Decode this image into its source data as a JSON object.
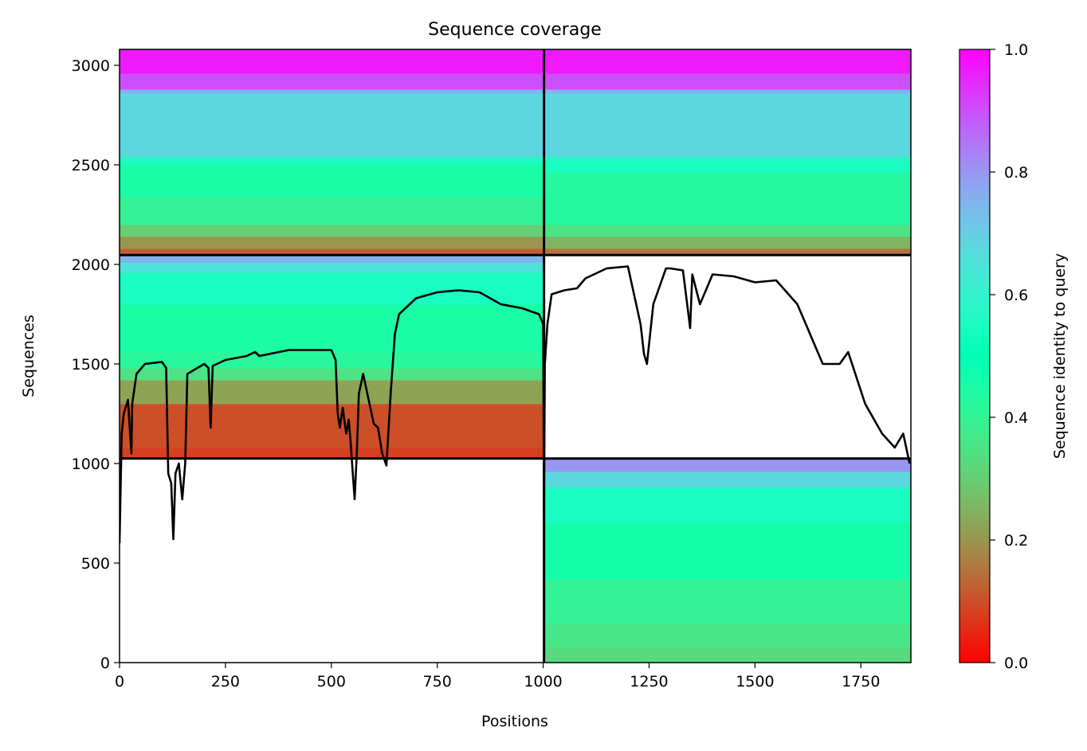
{
  "chart_data": {
    "type": "heatmap",
    "title": "Sequence coverage",
    "xlabel": "Positions",
    "ylabel": "Sequences",
    "xlim": [
      0,
      1868
    ],
    "ylim": [
      0,
      3080
    ],
    "xticks": [
      0,
      250,
      500,
      750,
      1000,
      1250,
      1500,
      1750
    ],
    "yticks": [
      0,
      500,
      1000,
      1500,
      2000,
      2500,
      3000
    ],
    "colorbar": {
      "label": "Sequence identity to query",
      "colormap": "rainbow_r",
      "range": [
        0,
        1
      ],
      "ticks": [
        0.0,
        0.2,
        0.4,
        0.6,
        0.8,
        1.0
      ],
      "tick_labels": [
        "0.0",
        "0.2",
        "0.4",
        "0.6",
        "0.8",
        "1.0"
      ]
    },
    "block_dividers": {
      "x": [
        1002,
        1002
      ],
      "y": [
        1025,
        2047
      ]
    },
    "blocks": [
      {
        "x_range": [
          0,
          1002
        ],
        "y_range": [
          2047,
          3080
        ],
        "identity_bands": [
          {
            "y": [
              2047,
              2080
            ],
            "identity": 0.12
          },
          {
            "y": [
              2080,
              2140
            ],
            "identity": 0.2
          },
          {
            "y": [
              2140,
              2200
            ],
            "identity": 0.3
          },
          {
            "y": [
              2200,
              2340
            ],
            "identity": 0.4
          },
          {
            "y": [
              2340,
              2500
            ],
            "identity": 0.45
          },
          {
            "y": [
              2500,
              2540
            ],
            "identity": 0.55
          },
          {
            "y": [
              2540,
              2860
            ],
            "identity": 0.68
          },
          {
            "y": [
              2860,
              2880
            ],
            "identity": 0.75
          },
          {
            "y": [
              2880,
              2960
            ],
            "identity": 0.9
          },
          {
            "y": [
              2960,
              3080
            ],
            "identity": 0.97
          }
        ]
      },
      {
        "x_range": [
          1002,
          1868
        ],
        "y_range": [
          2047,
          3080
        ],
        "identity_bands": [
          {
            "y": [
              2047,
              2080
            ],
            "identity": 0.15
          },
          {
            "y": [
              2080,
              2140
            ],
            "identity": 0.25
          },
          {
            "y": [
              2140,
              2200
            ],
            "identity": 0.35
          },
          {
            "y": [
              2200,
              2460
            ],
            "identity": 0.43
          },
          {
            "y": [
              2460,
              2540
            ],
            "identity": 0.55
          },
          {
            "y": [
              2540,
              2860
            ],
            "identity": 0.68
          },
          {
            "y": [
              2860,
              2880
            ],
            "identity": 0.75
          },
          {
            "y": [
              2880,
              2960
            ],
            "identity": 0.9
          },
          {
            "y": [
              2960,
              3080
            ],
            "identity": 0.97
          }
        ]
      },
      {
        "x_range": [
          0,
          1002
        ],
        "y_range": [
          1025,
          2047
        ],
        "identity_bands": [
          {
            "y": [
              1025,
              1080
            ],
            "identity": 0.08
          },
          {
            "y": [
              1080,
              1300
            ],
            "identity": 0.1
          },
          {
            "y": [
              1300,
              1420
            ],
            "identity": 0.22
          },
          {
            "y": [
              1420,
              1480
            ],
            "identity": 0.35
          },
          {
            "y": [
              1480,
              1560
            ],
            "identity": 0.42
          },
          {
            "y": [
              1560,
              1800
            ],
            "identity": 0.45
          },
          {
            "y": [
              1800,
              1960
            ],
            "identity": 0.55
          },
          {
            "y": [
              1960,
              2010
            ],
            "identity": 0.65
          },
          {
            "y": [
              2010,
              2047
            ],
            "identity": 0.75
          }
        ]
      },
      {
        "x_range": [
          1002,
          1868
        ],
        "y_range": [
          0,
          1025
        ],
        "identity_bands": [
          {
            "y": [
              0,
              80
            ],
            "identity": 0.33
          },
          {
            "y": [
              80,
              200
            ],
            "identity": 0.36
          },
          {
            "y": [
              200,
              420
            ],
            "identity": 0.4
          },
          {
            "y": [
              420,
              700
            ],
            "identity": 0.46
          },
          {
            "y": [
              700,
              880
            ],
            "identity": 0.55
          },
          {
            "y": [
              880,
              960
            ],
            "identity": 0.68
          },
          {
            "y": [
              960,
              1025
            ],
            "identity": 0.8
          }
        ]
      }
    ],
    "coverage_line": {
      "name": "",
      "x": [
        0,
        5,
        10,
        20,
        28,
        30,
        40,
        60,
        100,
        110,
        115,
        122,
        127,
        132,
        140,
        148,
        155,
        160,
        200,
        210,
        215,
        220,
        250,
        300,
        320,
        330,
        400,
        500,
        510,
        515,
        520,
        527,
        535,
        541,
        545,
        555,
        560,
        565,
        575,
        585,
        600,
        610,
        620,
        630,
        640,
        650,
        660,
        700,
        750,
        800,
        850,
        900,
        950,
        990,
        1000,
        1002,
        1004,
        1010,
        1020,
        1050,
        1080,
        1100,
        1150,
        1200,
        1230,
        1238,
        1245,
        1260,
        1290,
        1300,
        1330,
        1347,
        1352,
        1370,
        1400,
        1450,
        1500,
        1550,
        1600,
        1620,
        1640,
        1660,
        1700,
        1720,
        1760,
        1800,
        1830,
        1850,
        1865
      ],
      "y": [
        600,
        1150,
        1250,
        1320,
        1050,
        1300,
        1450,
        1500,
        1510,
        1480,
        950,
        900,
        620,
        950,
        1000,
        820,
        1000,
        1450,
        1500,
        1480,
        1180,
        1490,
        1520,
        1540,
        1560,
        1540,
        1570,
        1570,
        1520,
        1250,
        1180,
        1280,
        1150,
        1220,
        1120,
        820,
        1050,
        1350,
        1450,
        1350,
        1200,
        1180,
        1050,
        990,
        1350,
        1650,
        1750,
        1830,
        1860,
        1870,
        1860,
        1800,
        1780,
        1750,
        1700,
        750,
        1500,
        1700,
        1850,
        1870,
        1880,
        1930,
        1980,
        1990,
        1700,
        1550,
        1500,
        1800,
        1980,
        1980,
        1970,
        1680,
        1950,
        1800,
        1950,
        1940,
        1910,
        1920,
        1800,
        1700,
        1600,
        1500,
        1500,
        1560,
        1300,
        1150,
        1080,
        1150,
        1000
      ]
    }
  }
}
